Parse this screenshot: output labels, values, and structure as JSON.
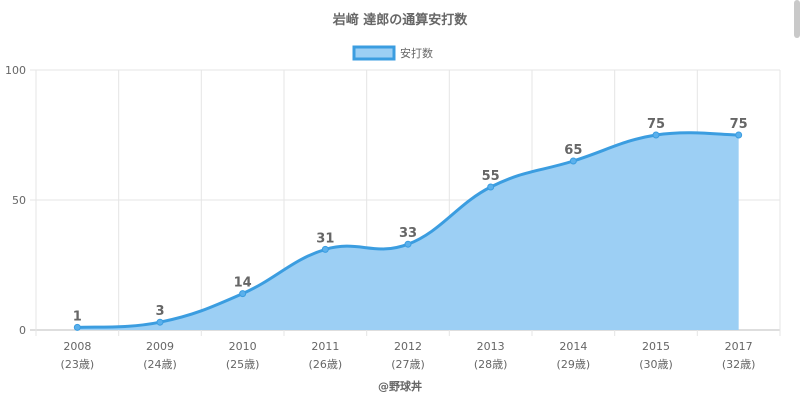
{
  "chart_data": {
    "type": "area",
    "title": "岩﨑 達郎の通算安打数",
    "legend": {
      "label": "安打数",
      "position": "top"
    },
    "categories": [
      "2008",
      "2009",
      "2010",
      "2011",
      "2012",
      "2013",
      "2014",
      "2015",
      "2017"
    ],
    "sublabels": [
      "(23歳)",
      "(24歳)",
      "(25歳)",
      "(26歳)",
      "(27歳)",
      "(28歳)",
      "(29歳)",
      "(30歳)",
      "(32歳)"
    ],
    "series": [
      {
        "name": "安打数",
        "values": [
          1,
          3,
          14,
          31,
          33,
          55,
          65,
          75,
          75
        ]
      }
    ],
    "ylim": [
      0,
      100
    ],
    "yticks": [
      0,
      50,
      100
    ],
    "grid": true,
    "colors": {
      "line": "#3b9de0",
      "fill": "#9ccff4",
      "point": "#5ab0ec",
      "text": "#666666"
    }
  },
  "footer": {
    "credit": "@野球丼"
  }
}
